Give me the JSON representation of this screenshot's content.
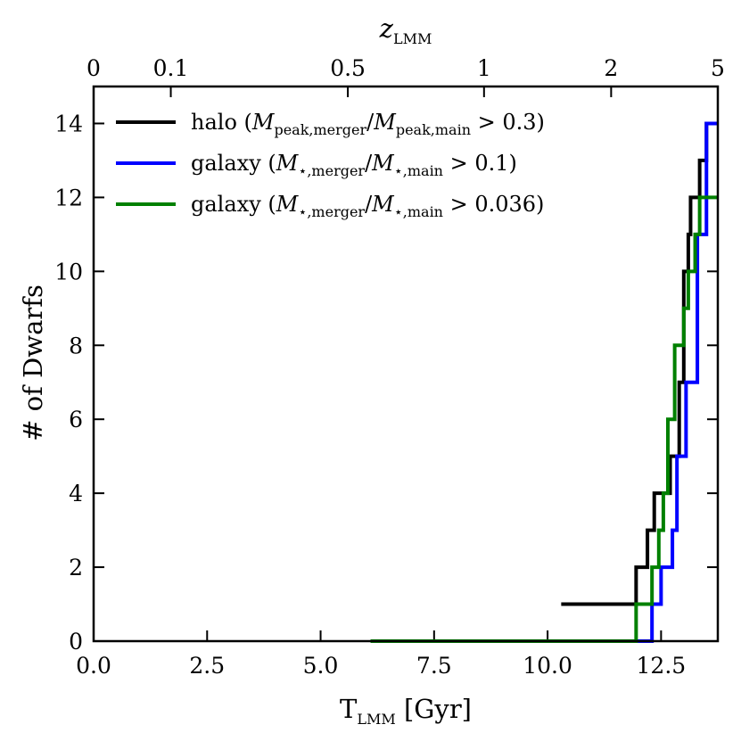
{
  "chart_data": {
    "type": "line",
    "step": "post",
    "xlabel": {
      "main": "T",
      "sub": "LMM",
      "rest": " [Gyr]"
    },
    "ylabel": "# of Dwarfs",
    "top_label": {
      "main": "z",
      "sub": "LMM"
    },
    "xlim": [
      0,
      13.75
    ],
    "ylim": [
      0,
      15
    ],
    "xticks": [
      0,
      2.5,
      5,
      7.5,
      10,
      12.5
    ],
    "xtick_labels": [
      "0.0",
      "2.5",
      "5.0",
      "7.5",
      "10.0",
      "12.5"
    ],
    "yticks": [
      0,
      2,
      4,
      6,
      8,
      10,
      12,
      14
    ],
    "ytick_labels": [
      "0",
      "2",
      "4",
      "6",
      "8",
      "10",
      "12",
      "14"
    ],
    "top_ticks": [
      {
        "label": "0",
        "t": 0.0
      },
      {
        "label": "0.1",
        "t": 1.7
      },
      {
        "label": "0.5",
        "t": 5.6
      },
      {
        "label": "1",
        "t": 8.6
      },
      {
        "label": "2",
        "t": 11.4
      },
      {
        "label": "5",
        "t": 13.75
      }
    ],
    "series": [
      {
        "name": "halo",
        "legend": {
          "prefix": "halo (",
          "expr": "M_peak,merger/M_peak,main",
          "suffix": " > 0.3)"
        },
        "color": "#000000",
        "x": [
          10.3,
          11.95,
          12.2,
          12.35,
          12.7,
          12.9,
          13.0,
          13.1,
          13.15,
          13.35,
          13.5
        ],
        "y": [
          1,
          2,
          3,
          4,
          5,
          7,
          10,
          11,
          12,
          13,
          14
        ]
      },
      {
        "name": "galaxy 0.1",
        "legend": {
          "prefix": "galaxy (",
          "expr": "M_star,merger/M_star,main",
          "suffix": " > 0.1)"
        },
        "color": "#0000ff",
        "x": [
          11.95,
          12.3,
          12.5,
          12.75,
          12.85,
          13.05,
          13.3,
          13.5
        ],
        "y": [
          0,
          1,
          2,
          3,
          5,
          7,
          11,
          14
        ]
      },
      {
        "name": "galaxy 0.036",
        "legend": {
          "prefix": "galaxy (",
          "expr": "M_star,merger/M_star,main",
          "suffix": " > 0.036)"
        },
        "color": "#008000",
        "x": [
          6.1,
          11.95,
          12.3,
          12.45,
          12.55,
          12.65,
          12.8,
          13.0,
          13.1,
          13.25,
          13.35
        ],
        "y": [
          0,
          1,
          2,
          3,
          4,
          6,
          8,
          9,
          10,
          11,
          12
        ]
      }
    ]
  }
}
